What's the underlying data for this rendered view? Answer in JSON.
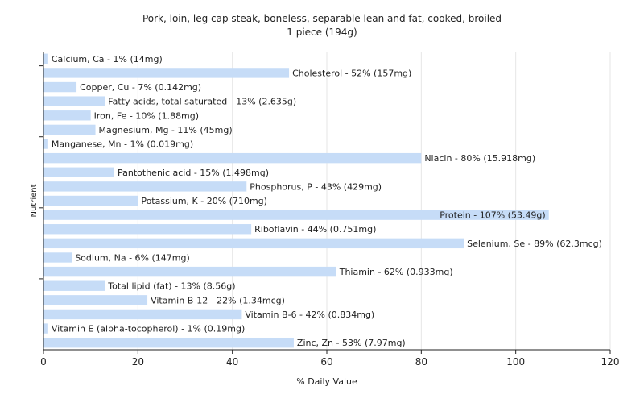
{
  "chart_data": {
    "type": "bar",
    "orientation": "horizontal",
    "title": "Pork, loin, leg cap steak, boneless, separable lean and fat, cooked, broiled",
    "subtitle": "1 piece (194g)",
    "xlabel": "% Daily Value",
    "ylabel": "Nutrient",
    "xlim": [
      0,
      120
    ],
    "xticks": [
      0,
      20,
      40,
      60,
      80,
      100,
      120
    ],
    "grid": true,
    "bar_color": "#c6dcf7",
    "bars": [
      {
        "name": "Calcium, Ca",
        "value": 1,
        "label": "Calcium, Ca - 1% (14mg)"
      },
      {
        "name": "Cholesterol",
        "value": 52,
        "label": "Cholesterol - 52% (157mg)"
      },
      {
        "name": "Copper, Cu",
        "value": 7,
        "label": "Copper, Cu - 7% (0.142mg)"
      },
      {
        "name": "Fatty acids, total saturated",
        "value": 13,
        "label": "Fatty acids, total saturated - 13% (2.635g)"
      },
      {
        "name": "Iron, Fe",
        "value": 10,
        "label": "Iron, Fe - 10% (1.88mg)"
      },
      {
        "name": "Magnesium, Mg",
        "value": 11,
        "label": "Magnesium, Mg - 11% (45mg)"
      },
      {
        "name": "Manganese, Mn",
        "value": 1,
        "label": "Manganese, Mn - 1% (0.019mg)"
      },
      {
        "name": "Niacin",
        "value": 80,
        "label": "Niacin - 80% (15.918mg)"
      },
      {
        "name": "Pantothenic acid",
        "value": 15,
        "label": "Pantothenic acid - 15% (1.498mg)"
      },
      {
        "name": "Phosphorus, P",
        "value": 43,
        "label": "Phosphorus, P - 43% (429mg)"
      },
      {
        "name": "Potassium, K",
        "value": 20,
        "label": "Potassium, K - 20% (710mg)"
      },
      {
        "name": "Protein",
        "value": 107,
        "label": "Protein - 107% (53.49g)"
      },
      {
        "name": "Riboflavin",
        "value": 44,
        "label": "Riboflavin - 44% (0.751mg)"
      },
      {
        "name": "Selenium, Se",
        "value": 89,
        "label": "Selenium, Se - 89% (62.3mcg)"
      },
      {
        "name": "Sodium, Na",
        "value": 6,
        "label": "Sodium, Na - 6% (147mg)"
      },
      {
        "name": "Thiamin",
        "value": 62,
        "label": "Thiamin - 62% (0.933mg)"
      },
      {
        "name": "Total lipid (fat)",
        "value": 13,
        "label": "Total lipid (fat) - 13% (8.56g)"
      },
      {
        "name": "Vitamin B-12",
        "value": 22,
        "label": "Vitamin B-12 - 22% (1.34mcg)"
      },
      {
        "name": "Vitamin B-6",
        "value": 42,
        "label": "Vitamin B-6 - 42% (0.834mg)"
      },
      {
        "name": "Vitamin E (alpha-tocopherol)",
        "value": 1,
        "label": "Vitamin E (alpha-tocopherol) - 1% (0.19mg)"
      },
      {
        "name": "Zinc, Zn",
        "value": 53,
        "label": "Zinc, Zn - 53% (7.97mg)"
      }
    ]
  }
}
